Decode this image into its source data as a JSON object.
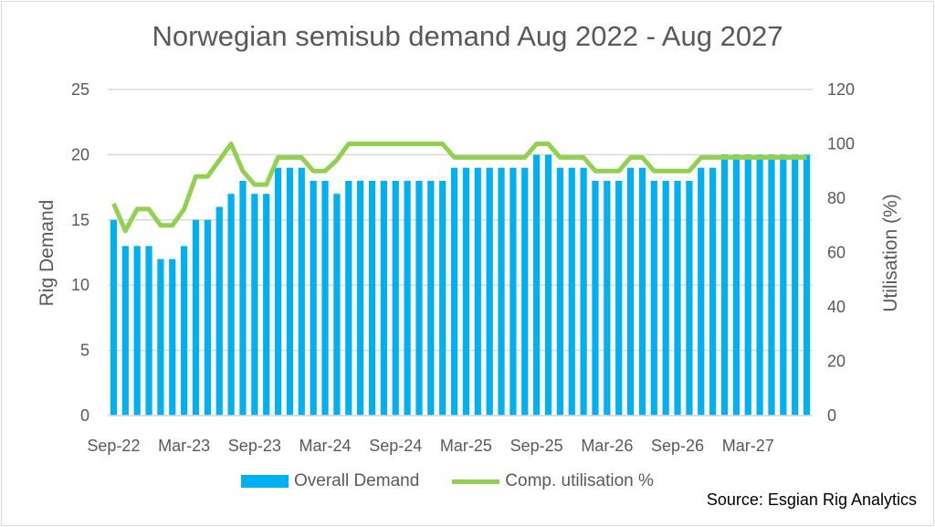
{
  "chart_data": {
    "type": "bar",
    "title": "Norwegian semisub demand Aug 2022 - Aug 2027",
    "ylabel": "Rig Demand",
    "y2label": "Utilisation (%)",
    "ylim": [
      0,
      25
    ],
    "y2lim": [
      0,
      120
    ],
    "yticks": [
      "0",
      "5",
      "10",
      "15",
      "20",
      "25"
    ],
    "y2ticks": [
      "0",
      "20",
      "40",
      "60",
      "80",
      "100",
      "120"
    ],
    "xtick_labels": [
      "Sep-22",
      "Mar-23",
      "Sep-23",
      "Mar-24",
      "Sep-24",
      "Mar-25",
      "Sep-25",
      "Mar-26",
      "Sep-26",
      "Mar-27"
    ],
    "grid": true,
    "legend_position": "bottom",
    "colors": {
      "bars": "#00B0F0",
      "line": "#92D050"
    },
    "series": [
      {
        "name": "Overall Demand",
        "type": "bar",
        "axis": "left",
        "values": [
          15,
          13,
          13,
          13,
          12,
          12,
          13,
          15,
          15,
          16,
          17,
          18,
          17,
          17,
          19,
          19,
          19,
          18,
          18,
          17,
          18,
          18,
          18,
          18,
          18,
          18,
          18,
          18,
          18,
          19,
          19,
          19,
          19,
          19,
          19,
          19,
          20,
          20,
          19,
          19,
          19,
          18,
          18,
          18,
          19,
          19,
          18,
          18,
          18,
          18,
          19,
          19,
          20,
          20,
          20,
          20,
          20,
          20,
          20,
          20
        ]
      },
      {
        "name": "Comp. utilisation %",
        "type": "line",
        "axis": "right",
        "values": [
          78,
          68,
          76,
          76,
          70,
          70,
          76,
          88,
          88,
          94,
          100,
          90,
          85,
          85,
          95,
          95,
          95,
          90,
          90,
          94,
          100,
          100,
          100,
          100,
          100,
          100,
          100,
          100,
          100,
          95,
          95,
          95,
          95,
          95,
          95,
          95,
          100,
          100,
          95,
          95,
          95,
          90,
          90,
          90,
          95,
          95,
          90,
          90,
          90,
          90,
          95,
          95,
          95,
          95,
          95,
          95,
          95,
          95,
          95,
          95
        ]
      }
    ]
  },
  "source": "Source: Esgian Rig Analytics"
}
